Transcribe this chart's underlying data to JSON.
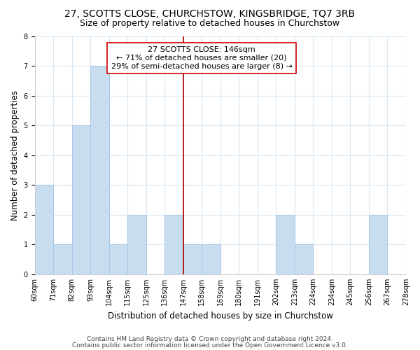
{
  "title": "27, SCOTTS CLOSE, CHURCHSTOW, KINGSBRIDGE, TQ7 3RB",
  "subtitle": "Size of property relative to detached houses in Churchstow",
  "xlabel": "Distribution of detached houses by size in Churchstow",
  "ylabel": "Number of detached properties",
  "bin_labels": [
    "60sqm",
    "71sqm",
    "82sqm",
    "93sqm",
    "104sqm",
    "115sqm",
    "125sqm",
    "136sqm",
    "147sqm",
    "158sqm",
    "169sqm",
    "180sqm",
    "191sqm",
    "202sqm",
    "213sqm",
    "224sqm",
    "234sqm",
    "245sqm",
    "256sqm",
    "267sqm",
    "278sqm"
  ],
  "counts": [
    3,
    1,
    5,
    7,
    1,
    2,
    0,
    2,
    1,
    1,
    0,
    0,
    0,
    2,
    1,
    0,
    0,
    0,
    2,
    0
  ],
  "bar_color": "#c8ddf0",
  "bar_edgecolor": "#a8c8e8",
  "vline_bin": 8,
  "vline_color": "#aa0000",
  "annotation_title": "27 SCOTTS CLOSE: 146sqm",
  "annotation_line1": "← 71% of detached houses are smaller (20)",
  "annotation_line2": "29% of semi-detached houses are larger (8) →",
  "annotation_box_color": "#ffffff",
  "annotation_box_edgecolor": "#cc0000",
  "ylim": [
    0,
    8
  ],
  "yticks": [
    0,
    1,
    2,
    3,
    4,
    5,
    6,
    7,
    8
  ],
  "footer1": "Contains HM Land Registry data © Crown copyright and database right 2024.",
  "footer2": "Contains public sector information licensed under the Open Government Licence v3.0.",
  "background_color": "#ffffff",
  "grid_color": "#d8e8f4",
  "title_fontsize": 10,
  "subtitle_fontsize": 9,
  "axis_label_fontsize": 8.5,
  "tick_fontsize": 7,
  "annotation_fontsize": 8,
  "footer_fontsize": 6.5
}
